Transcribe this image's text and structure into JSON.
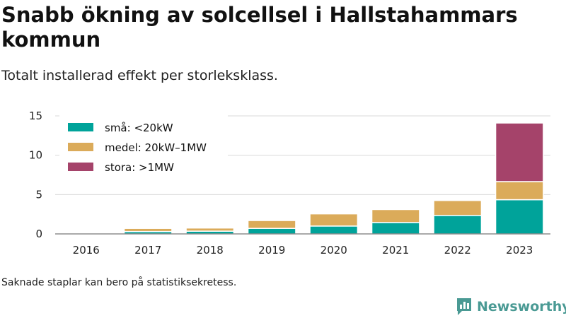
{
  "header": {
    "title": "Snabb ökning av solcellsel i Hallstahammars kommun",
    "subtitle": "Totalt installerad effekt per storleksklass."
  },
  "footnote": "Saknade staplar kan bero på statistiksekretess.",
  "brand": {
    "name": "Newsworthy",
    "icon": "newsworthy-logo-icon",
    "color": "#4a9a94"
  },
  "chart_data": {
    "type": "bar",
    "stacked": true,
    "title": "",
    "xlabel": "",
    "ylabel": "",
    "categories": [
      "2016",
      "2017",
      "2018",
      "2019",
      "2020",
      "2021",
      "2022",
      "2023"
    ],
    "series": [
      {
        "name": "små: <20kW",
        "color": "#00a39a",
        "values": [
          0,
          0.3,
          0.35,
          0.7,
          1.0,
          1.45,
          2.35,
          4.35
        ]
      },
      {
        "name": "medel: 20kW–1MW",
        "color": "#dbab5a",
        "values": [
          0,
          0.4,
          0.4,
          1.0,
          1.55,
          1.65,
          1.9,
          2.3
        ]
      },
      {
        "name": "stora: >1MW",
        "color": "#a5436a",
        "values": [
          0,
          0,
          0,
          0,
          0,
          0,
          0,
          7.45
        ]
      }
    ],
    "ylim": [
      0,
      15
    ],
    "yticks": [
      0,
      5,
      10,
      15
    ],
    "grid": true,
    "legend_position": "top-left"
  }
}
